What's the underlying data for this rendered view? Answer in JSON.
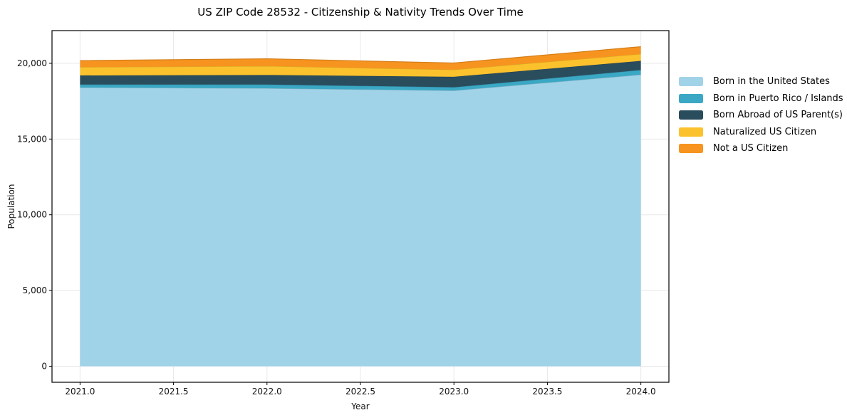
{
  "chart_data": {
    "type": "area",
    "stacked": true,
    "title": "US ZIP Code 28532 - Citizenship & Nativity Trends Over Time",
    "xlabel": "Year",
    "ylabel": "Population",
    "x": [
      2021,
      2022,
      2023,
      2024
    ],
    "series": [
      {
        "name": "Born in the United States",
        "color": "#a1d3e8",
        "values": [
          18400,
          18350,
          18200,
          19250
        ]
      },
      {
        "name": "Born in Puerto Rico / Islands",
        "color": "#3aa8c4",
        "values": [
          200,
          250,
          220,
          310
        ]
      },
      {
        "name": "Born Abroad of US Parent(s)",
        "color": "#2a4d5e",
        "values": [
          600,
          630,
          690,
          600
        ]
      },
      {
        "name": "Naturalized US Citizen",
        "color": "#fcc22d",
        "values": [
          550,
          590,
          470,
          460
        ]
      },
      {
        "name": "Not a US Citizen",
        "color": "#f7941f",
        "values": [
          430,
          480,
          440,
          480
        ]
      }
    ],
    "xlim": [
      2020.85,
      2024.15
    ],
    "ylim": [
      -1060,
      22160
    ],
    "x_ticks": {
      "values": [
        2021.0,
        2021.5,
        2022.0,
        2022.5,
        2023.0,
        2023.5,
        2024.0
      ],
      "labels": [
        "2021.0",
        "2021.5",
        "2022.0",
        "2022.5",
        "2023.0",
        "2023.5",
        "2024.0"
      ]
    },
    "y_ticks": {
      "values": [
        0,
        5000,
        10000,
        15000,
        20000
      ],
      "labels": [
        "0",
        "5,000",
        "10,000",
        "15,000",
        "20,000"
      ]
    },
    "grid": true,
    "grid_color": "#e8e8e8",
    "axis_color": "#000000",
    "tick_color": "#111111",
    "legend_position": "outside-right",
    "background": "#ffffff"
  }
}
